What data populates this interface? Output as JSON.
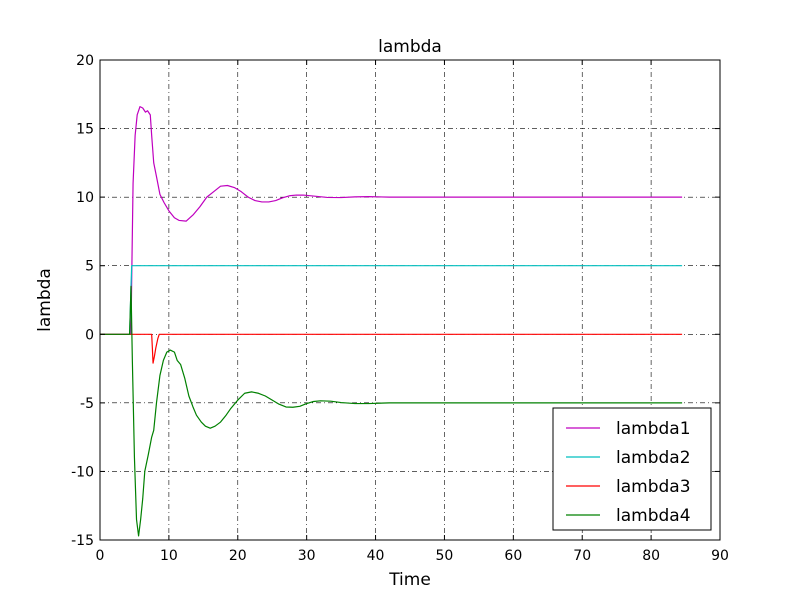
{
  "chart_data": {
    "type": "line",
    "title": "lambda",
    "xlabel": "Time",
    "ylabel": "lambda",
    "xlim": [
      0,
      90
    ],
    "ylim": [
      -15,
      20
    ],
    "xticks": [
      0,
      10,
      20,
      30,
      40,
      50,
      60,
      70,
      80,
      90
    ],
    "yticks": [
      -15,
      -10,
      -5,
      0,
      5,
      10,
      15,
      20
    ],
    "grid": true,
    "legend_position": "lower-right",
    "series": [
      {
        "name": "lambda1",
        "color": "#bf00bf",
        "points": [
          [
            0,
            0
          ],
          [
            4.5,
            0
          ],
          [
            4.6,
            4
          ],
          [
            4.8,
            11
          ],
          [
            5.1,
            14.5
          ],
          [
            5.4,
            16
          ],
          [
            5.8,
            16.6
          ],
          [
            6.2,
            16.5
          ],
          [
            6.6,
            16.2
          ],
          [
            6.9,
            16.3
          ],
          [
            7.3,
            16
          ],
          [
            7.5,
            14.5
          ],
          [
            7.8,
            12.5
          ],
          [
            8.2,
            11.5
          ],
          [
            8.7,
            10.2
          ],
          [
            9.3,
            9.6
          ],
          [
            10,
            9
          ],
          [
            10.8,
            8.5
          ],
          [
            11.5,
            8.3
          ],
          [
            12.5,
            8.25
          ],
          [
            13.5,
            8.7
          ],
          [
            14.5,
            9.3
          ],
          [
            15.5,
            10
          ],
          [
            16.5,
            10.4
          ],
          [
            17.5,
            10.8
          ],
          [
            18.5,
            10.85
          ],
          [
            19.5,
            10.7
          ],
          [
            20.5,
            10.4
          ],
          [
            21.5,
            10
          ],
          [
            22.5,
            9.75
          ],
          [
            23.5,
            9.65
          ],
          [
            24.5,
            9.65
          ],
          [
            25.5,
            9.75
          ],
          [
            26.5,
            9.95
          ],
          [
            27.5,
            10.1
          ],
          [
            28.5,
            10.15
          ],
          [
            29.5,
            10.15
          ],
          [
            31,
            10.08
          ],
          [
            33,
            9.98
          ],
          [
            35,
            9.97
          ],
          [
            37,
            10.02
          ],
          [
            39,
            10.04
          ],
          [
            42,
            10
          ],
          [
            84.5,
            10
          ]
        ]
      },
      {
        "name": "lambda2",
        "color": "#00bfbf",
        "points": [
          [
            0,
            0
          ],
          [
            4.3,
            0
          ],
          [
            4.5,
            3.5
          ],
          [
            4.6,
            5
          ],
          [
            5,
            5
          ],
          [
            84.5,
            5
          ]
        ]
      },
      {
        "name": "lambda3",
        "color": "#ff0000",
        "points": [
          [
            0,
            0
          ],
          [
            7.5,
            0
          ],
          [
            7.6,
            -1
          ],
          [
            7.7,
            -2.1
          ],
          [
            7.9,
            -1.6
          ],
          [
            8.1,
            -1
          ],
          [
            8.4,
            -0.3
          ],
          [
            8.6,
            0
          ],
          [
            84.5,
            0
          ]
        ]
      },
      {
        "name": "lambda4",
        "color": "#008000",
        "points": [
          [
            0,
            0
          ],
          [
            4.3,
            0
          ],
          [
            4.5,
            3.5
          ],
          [
            4.7,
            -2
          ],
          [
            5,
            -9
          ],
          [
            5.3,
            -13.5
          ],
          [
            5.6,
            -14.7
          ],
          [
            5.9,
            -13.5
          ],
          [
            6.2,
            -12
          ],
          [
            6.5,
            -10
          ],
          [
            7,
            -8.8
          ],
          [
            7.5,
            -7.5
          ],
          [
            7.8,
            -7
          ],
          [
            8.2,
            -5
          ],
          [
            8.7,
            -3
          ],
          [
            9.2,
            -1.9
          ],
          [
            9.7,
            -1.3
          ],
          [
            10.2,
            -1.15
          ],
          [
            10.8,
            -1.3
          ],
          [
            11.2,
            -1.9
          ],
          [
            11.7,
            -2.2
          ],
          [
            12.3,
            -3.2
          ],
          [
            12.9,
            -4.5
          ],
          [
            13.5,
            -5.3
          ],
          [
            14,
            -5.9
          ],
          [
            14.7,
            -6.4
          ],
          [
            15.3,
            -6.7
          ],
          [
            16,
            -6.85
          ],
          [
            16.7,
            -6.7
          ],
          [
            17.5,
            -6.4
          ],
          [
            18.3,
            -5.9
          ],
          [
            19,
            -5.4
          ],
          [
            20,
            -4.8
          ],
          [
            21,
            -4.3
          ],
          [
            22,
            -4.2
          ],
          [
            23,
            -4.3
          ],
          [
            24,
            -4.5
          ],
          [
            25,
            -4.8
          ],
          [
            26,
            -5.1
          ],
          [
            27,
            -5.3
          ],
          [
            28,
            -5.32
          ],
          [
            29,
            -5.25
          ],
          [
            30,
            -5.05
          ],
          [
            31,
            -4.9
          ],
          [
            32,
            -4.85
          ],
          [
            33.5,
            -4.88
          ],
          [
            35,
            -4.98
          ],
          [
            37,
            -5.05
          ],
          [
            39,
            -5.05
          ],
          [
            42,
            -5
          ],
          [
            84.5,
            -5
          ]
        ]
      }
    ]
  }
}
